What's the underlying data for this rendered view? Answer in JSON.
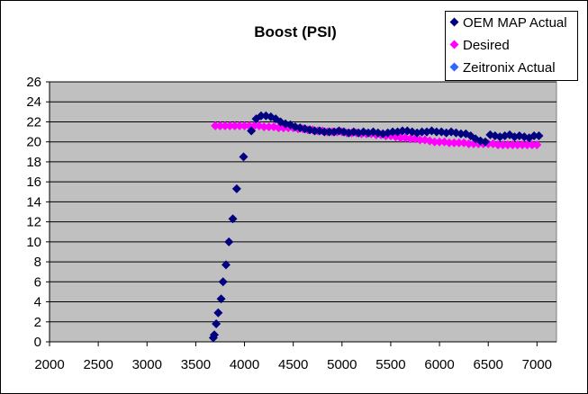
{
  "chart_data": {
    "type": "scatter",
    "title": "Boost (PSI)",
    "xlabel": "",
    "ylabel": "",
    "xlim": [
      2000,
      7200
    ],
    "ylim": [
      0,
      26
    ],
    "xticks": [
      2000,
      2500,
      3000,
      3500,
      4000,
      4500,
      5000,
      5500,
      6000,
      6500,
      7000
    ],
    "yticks": [
      0,
      2,
      4,
      6,
      8,
      10,
      12,
      14,
      16,
      18,
      20,
      22,
      24,
      26
    ],
    "grid": "horizontal",
    "legend_position": "top-right",
    "series": [
      {
        "name": "OEM MAP Actual",
        "color": "#000080",
        "x": [
          3680,
          3690,
          3710,
          3730,
          3760,
          3780,
          3810,
          3840,
          3880,
          3920,
          3990,
          4070,
          4120,
          4170,
          4220,
          4270,
          4320,
          4370,
          4420,
          4470,
          4520,
          4570,
          4620,
          4670,
          4720,
          4770,
          4820,
          4870,
          4920,
          4970,
          5020,
          5070,
          5120,
          5170,
          5220,
          5270,
          5320,
          5370,
          5420,
          5470,
          5520,
          5570,
          5620,
          5670,
          5720,
          5770,
          5820,
          5870,
          5920,
          5970,
          6020,
          6070,
          6120,
          6170,
          6220,
          6270,
          6320,
          6370,
          6420,
          6470,
          6520,
          6570,
          6620,
          6670,
          6720,
          6770,
          6820,
          6870,
          6920,
          6970,
          7020
        ],
        "y": [
          0.4,
          0.7,
          1.8,
          2.9,
          4.3,
          6.0,
          7.7,
          10.0,
          12.3,
          15.3,
          18.5,
          21.1,
          22.3,
          22.6,
          22.6,
          22.5,
          22.3,
          22.0,
          21.8,
          21.7,
          21.5,
          21.4,
          21.3,
          21.2,
          21.1,
          21.1,
          21.0,
          21.0,
          21.0,
          21.1,
          21.0,
          20.9,
          21.0,
          20.9,
          21.0,
          20.9,
          21.0,
          20.9,
          20.8,
          20.9,
          21.0,
          21.0,
          21.1,
          21.1,
          21.0,
          20.9,
          21.0,
          21.0,
          21.1,
          21.0,
          21.0,
          20.9,
          21.0,
          20.9,
          20.8,
          20.8,
          20.6,
          20.3,
          20.1,
          20.0,
          20.7,
          20.6,
          20.5,
          20.6,
          20.7,
          20.5,
          20.6,
          20.5,
          20.4,
          20.6,
          20.6
        ]
      },
      {
        "name": "Desired",
        "color": "#FF00FF",
        "x": [
          3700,
          3750,
          3800,
          3850,
          3900,
          3950,
          4000,
          4050,
          4100,
          4150,
          4200,
          4250,
          4300,
          4350,
          4400,
          4450,
          4500,
          4550,
          4600,
          4650,
          4700,
          4750,
          4800,
          4850,
          4900,
          4950,
          5000,
          5050,
          5100,
          5150,
          5200,
          5250,
          5300,
          5350,
          5400,
          5450,
          5500,
          5550,
          5600,
          5650,
          5700,
          5750,
          5800,
          5850,
          5900,
          5950,
          6000,
          6050,
          6100,
          6150,
          6200,
          6250,
          6300,
          6350,
          6400,
          6450,
          6500,
          6550,
          6600,
          6650,
          6700,
          6750,
          6800,
          6850,
          6900,
          6950,
          7000
        ],
        "y": [
          21.6,
          21.6,
          21.6,
          21.6,
          21.6,
          21.6,
          21.6,
          21.6,
          21.6,
          21.6,
          21.5,
          21.5,
          21.5,
          21.4,
          21.4,
          21.4,
          21.4,
          21.3,
          21.3,
          21.2,
          21.2,
          21.1,
          21.1,
          21.0,
          21.0,
          21.0,
          21.0,
          20.9,
          20.9,
          20.9,
          20.8,
          20.8,
          20.8,
          20.7,
          20.7,
          20.6,
          20.6,
          20.5,
          20.4,
          20.4,
          20.3,
          20.3,
          20.2,
          20.2,
          20.1,
          20.0,
          20.0,
          20.0,
          19.9,
          19.9,
          19.9,
          19.9,
          19.8,
          19.8,
          19.8,
          19.8,
          19.8,
          19.8,
          19.7,
          19.7,
          19.7,
          19.7,
          19.7,
          19.7,
          19.7,
          19.7,
          19.7
        ]
      },
      {
        "name": "Zeitronix Actual",
        "color": "#3366FF",
        "x": [],
        "y": []
      }
    ]
  }
}
